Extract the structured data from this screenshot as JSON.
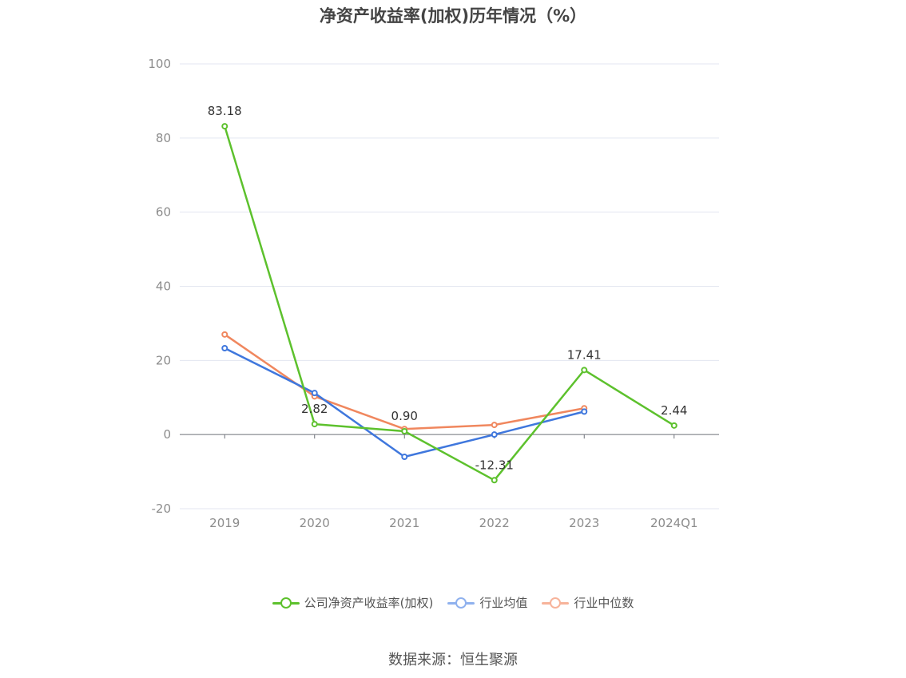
{
  "chart_data": {
    "type": "line",
    "title": "净资产收益率(加权)历年情况（%）",
    "categories": [
      "2019",
      "2020",
      "2021",
      "2022",
      "2023",
      "2024Q1"
    ],
    "y_ticks": [
      "100",
      "80",
      "60",
      "40",
      "20",
      "0",
      "-20"
    ],
    "ylim": [
      -20,
      100
    ],
    "grid": true,
    "legend_position": "bottom",
    "series": [
      {
        "name": "公司净资产收益率(加权)",
        "color": "#5dc12d",
        "values": [
          83.18,
          2.82,
          0.9,
          -12.31,
          17.41,
          2.44
        ],
        "labels": [
          "83.18",
          "2.82",
          "0.90",
          "-12.31",
          "17.41",
          "2.44"
        ]
      },
      {
        "name": "行业均值",
        "color": "#3f77dd",
        "values": [
          23.3,
          11.2,
          -6.0,
          0.0,
          6.2,
          null
        ]
      },
      {
        "name": "行业中位数",
        "color": "#f0875e",
        "values": [
          27.0,
          10.3,
          1.5,
          2.6,
          7.1,
          null
        ]
      }
    ]
  },
  "legend_colors": [
    "#5dc12d",
    "#8fb1ee",
    "#f7b39a"
  ],
  "source": "数据来源：恒生聚源"
}
